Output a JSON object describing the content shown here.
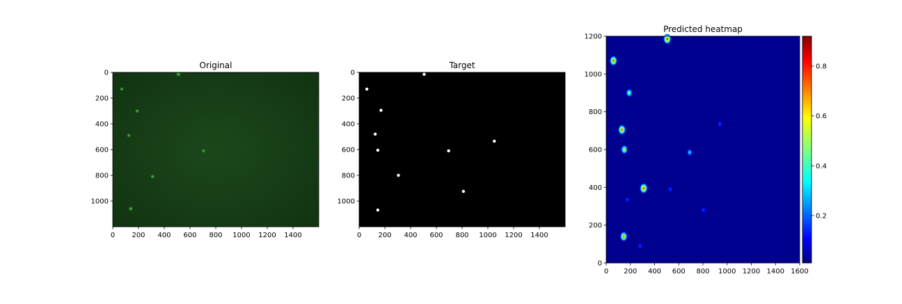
{
  "chart_data": [
    {
      "type": "heatmap",
      "title": "Original",
      "xlim": [
        0,
        1600
      ],
      "ylim": [
        1200,
        0
      ],
      "y_inverted": true,
      "xticks": [
        0,
        200,
        400,
        600,
        800,
        1000,
        1200,
        1400
      ],
      "yticks": [
        0,
        200,
        400,
        600,
        800,
        1000
      ],
      "background_color": "#173f17",
      "spots": [
        {
          "x": 510,
          "y": 15,
          "intensity": 0.5
        },
        {
          "x": 70,
          "y": 130,
          "intensity": 0.3
        },
        {
          "x": 190,
          "y": 300,
          "intensity": 0.35
        },
        {
          "x": 125,
          "y": 490,
          "intensity": 0.3
        },
        {
          "x": 705,
          "y": 610,
          "intensity": 0.3
        },
        {
          "x": 310,
          "y": 810,
          "intensity": 0.35
        },
        {
          "x": 140,
          "y": 1060,
          "intensity": 0.45
        }
      ]
    },
    {
      "type": "scatter",
      "title": "Target",
      "xlim": [
        0,
        1600
      ],
      "ylim": [
        1200,
        0
      ],
      "y_inverted": true,
      "xticks": [
        0,
        200,
        400,
        600,
        800,
        1000,
        1200,
        1400
      ],
      "yticks": [
        0,
        200,
        400,
        600,
        800,
        1000
      ],
      "background_color": "#000000",
      "point_color": "#ffffff",
      "points": [
        {
          "x": 505,
          "y": 15
        },
        {
          "x": 60,
          "y": 130
        },
        {
          "x": 170,
          "y": 295
        },
        {
          "x": 125,
          "y": 480
        },
        {
          "x": 145,
          "y": 605
        },
        {
          "x": 1050,
          "y": 535
        },
        {
          "x": 695,
          "y": 610
        },
        {
          "x": 305,
          "y": 800
        },
        {
          "x": 810,
          "y": 925
        },
        {
          "x": 145,
          "y": 1070
        }
      ]
    },
    {
      "type": "heatmap",
      "title": "Predicted heatmap",
      "xlim": [
        0,
        1600
      ],
      "ylim": [
        0,
        1200
      ],
      "xticks": [
        0,
        200,
        400,
        600,
        800,
        1000,
        1200,
        1400,
        1600
      ],
      "yticks": [
        0,
        200,
        400,
        600,
        800,
        1000,
        1200
      ],
      "background_color": "#00008f",
      "colormap": "jet",
      "colorbar": {
        "min": 0.01,
        "max": 0.92,
        "ticks": [
          0.2,
          0.4,
          0.6,
          0.8
        ],
        "tick_labels": [
          "0.2",
          "0.4",
          "0.6",
          "0.8"
        ]
      },
      "peaks": [
        {
          "x": 505,
          "y": 1185,
          "value": 0.85
        },
        {
          "x": 60,
          "y": 1070,
          "value": 0.8
        },
        {
          "x": 190,
          "y": 900,
          "value": 0.55
        },
        {
          "x": 130,
          "y": 705,
          "value": 0.8
        },
        {
          "x": 150,
          "y": 600,
          "value": 0.65
        },
        {
          "x": 690,
          "y": 585,
          "value": 0.38
        },
        {
          "x": 940,
          "y": 735,
          "value": 0.2
        },
        {
          "x": 310,
          "y": 395,
          "value": 0.85
        },
        {
          "x": 530,
          "y": 390,
          "value": 0.2
        },
        {
          "x": 175,
          "y": 335,
          "value": 0.2
        },
        {
          "x": 805,
          "y": 280,
          "value": 0.2
        },
        {
          "x": 145,
          "y": 140,
          "value": 0.75
        },
        {
          "x": 280,
          "y": 90,
          "value": 0.2
        }
      ]
    }
  ]
}
